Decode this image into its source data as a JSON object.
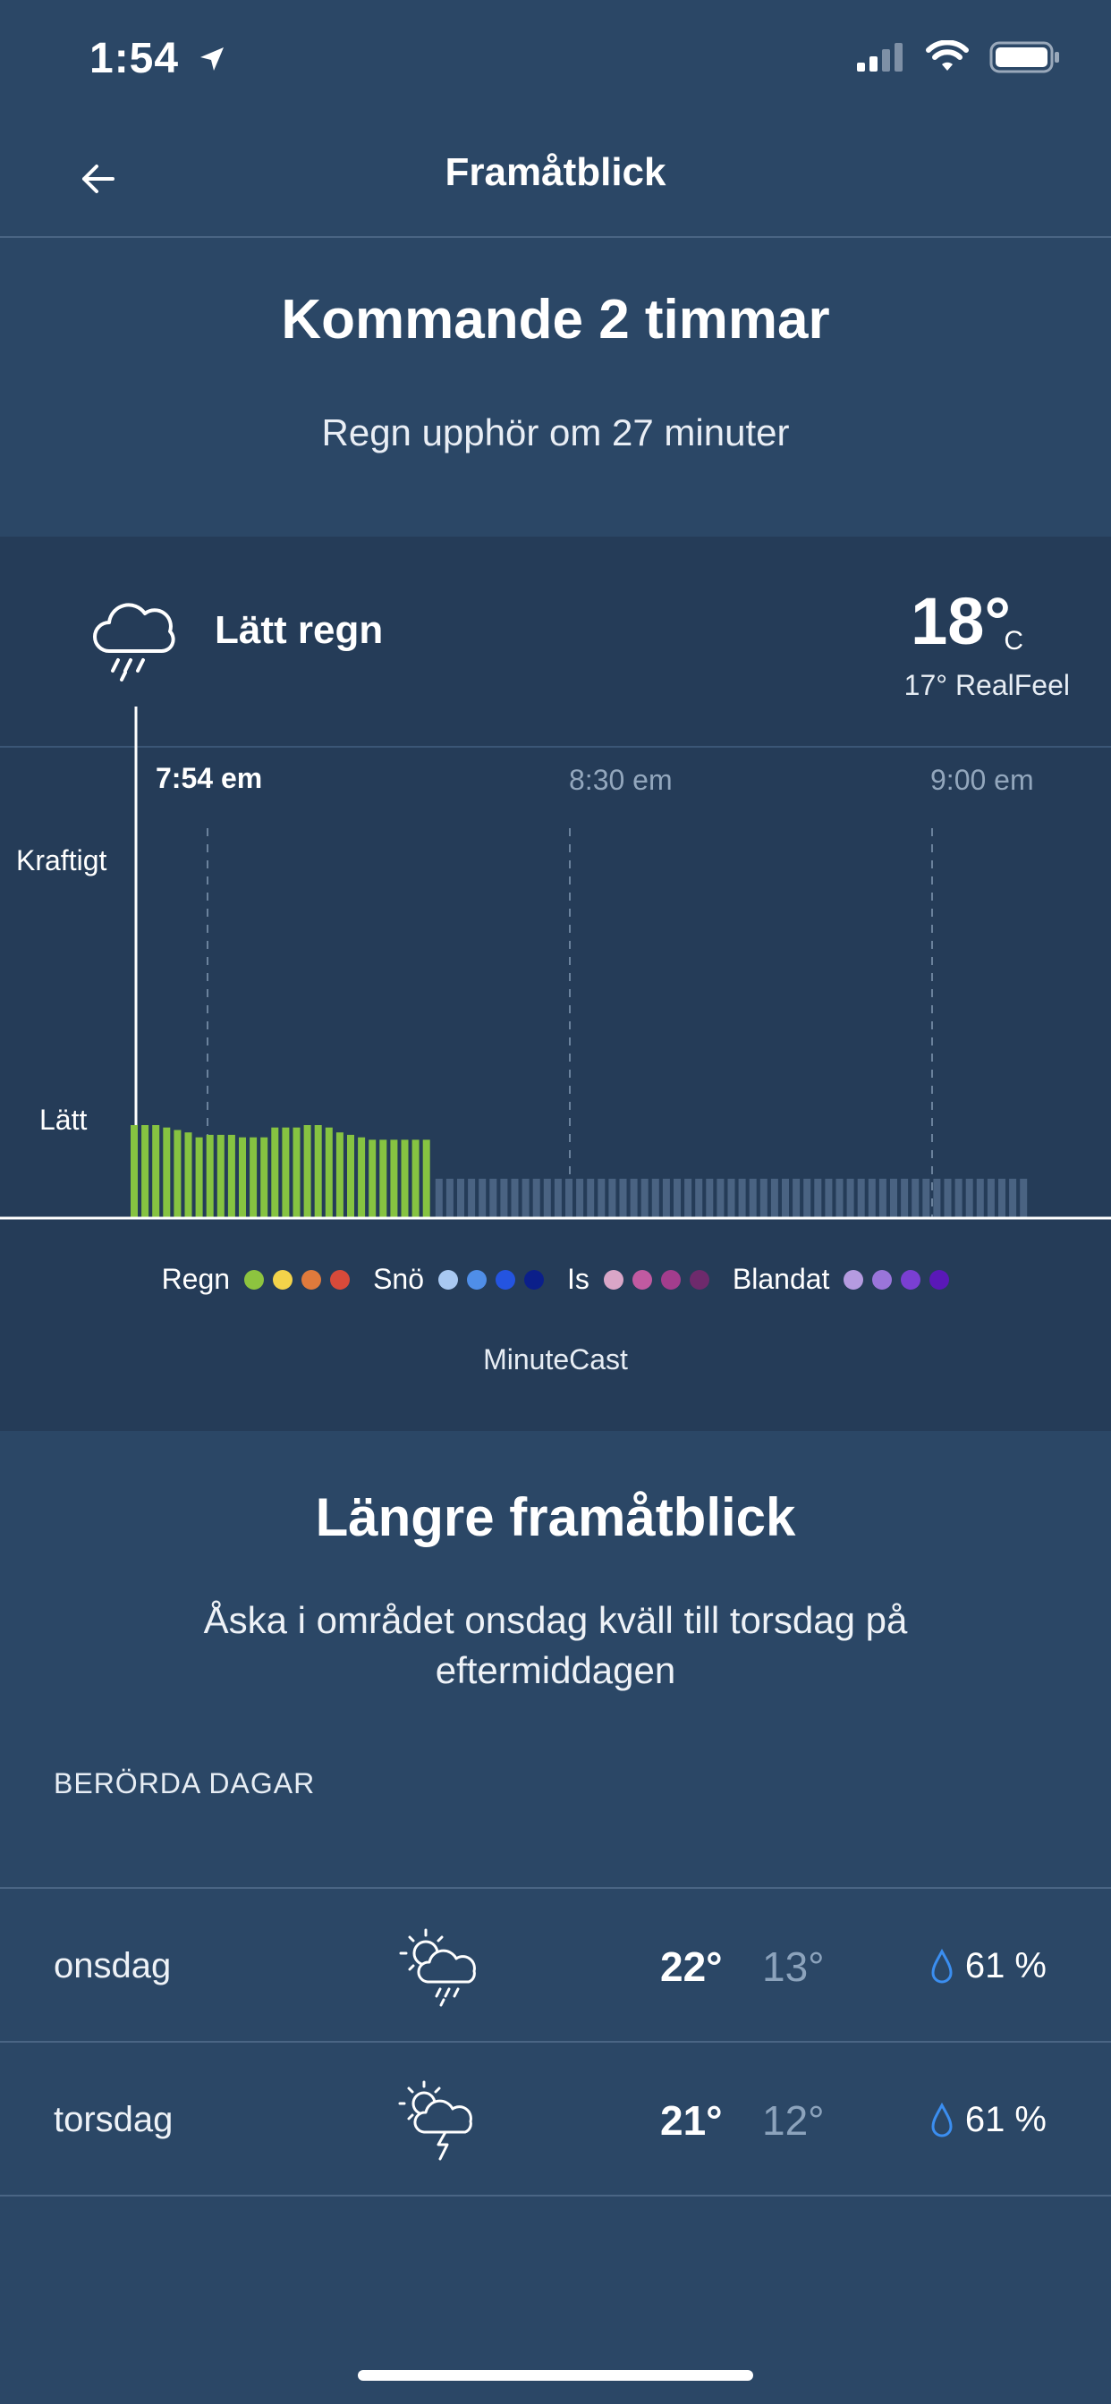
{
  "status_bar": {
    "time": "1:54"
  },
  "header": {
    "title": "Framåtblick"
  },
  "summary": {
    "title": "Kommande 2 timmar",
    "subtitle": "Regn upphör om 27 minuter"
  },
  "current": {
    "condition": "Lätt regn",
    "icon": "rain-cloud-icon",
    "temperature": "18°",
    "unit": "C",
    "realfeel": "17° RealFeel"
  },
  "minutecast_chart": {
    "type": "bar",
    "time_labels": [
      "7:54 em",
      "8:30 em",
      "9:00 em"
    ],
    "y_labels": {
      "heavy": "Kraftigt",
      "light": "Lätt"
    },
    "rain_intensity": [
      0.38,
      0.38,
      0.38,
      0.37,
      0.36,
      0.35,
      0.33,
      0.34,
      0.34,
      0.34,
      0.33,
      0.33,
      0.33,
      0.37,
      0.37,
      0.37,
      0.38,
      0.38,
      0.37,
      0.35,
      0.34,
      0.33,
      0.32,
      0.32,
      0.32,
      0.32,
      0.32,
      0.32
    ],
    "no_precip_count": 55,
    "colors": {
      "rain_light": "#86c341",
      "none": "#4a6382"
    }
  },
  "legend": {
    "groups": [
      {
        "label": "Regn",
        "colors": [
          "#8dc43f",
          "#f3d34a",
          "#e07a3c",
          "#d84a3a"
        ]
      },
      {
        "label": "Snö",
        "colors": [
          "#a9c9f2",
          "#4f8ee8",
          "#2454e0",
          "#0b1f8a"
        ]
      },
      {
        "label": "Is",
        "colors": [
          "#d9a6c7",
          "#c15aa1",
          "#a33d8d",
          "#6e2a6c"
        ]
      },
      {
        "label": "Blandat",
        "colors": [
          "#b59be0",
          "#9a75da",
          "#7a3fd2",
          "#5a18b8"
        ]
      }
    ],
    "caption": "MinuteCast"
  },
  "longer": {
    "title": "Längre framåtblick",
    "description": "Åska i området onsdag kväll till torsdag på eftermiddagen",
    "section_label": "BERÖRDA DAGAR",
    "days": [
      {
        "name": "onsdag",
        "icon": "sun-cloud-rain-icon",
        "high": "22°",
        "low": "13°",
        "precip": "61 %"
      },
      {
        "name": "torsdag",
        "icon": "sun-cloud-thunder-icon",
        "high": "21°",
        "low": "12°",
        "precip": "61 %"
      }
    ]
  }
}
